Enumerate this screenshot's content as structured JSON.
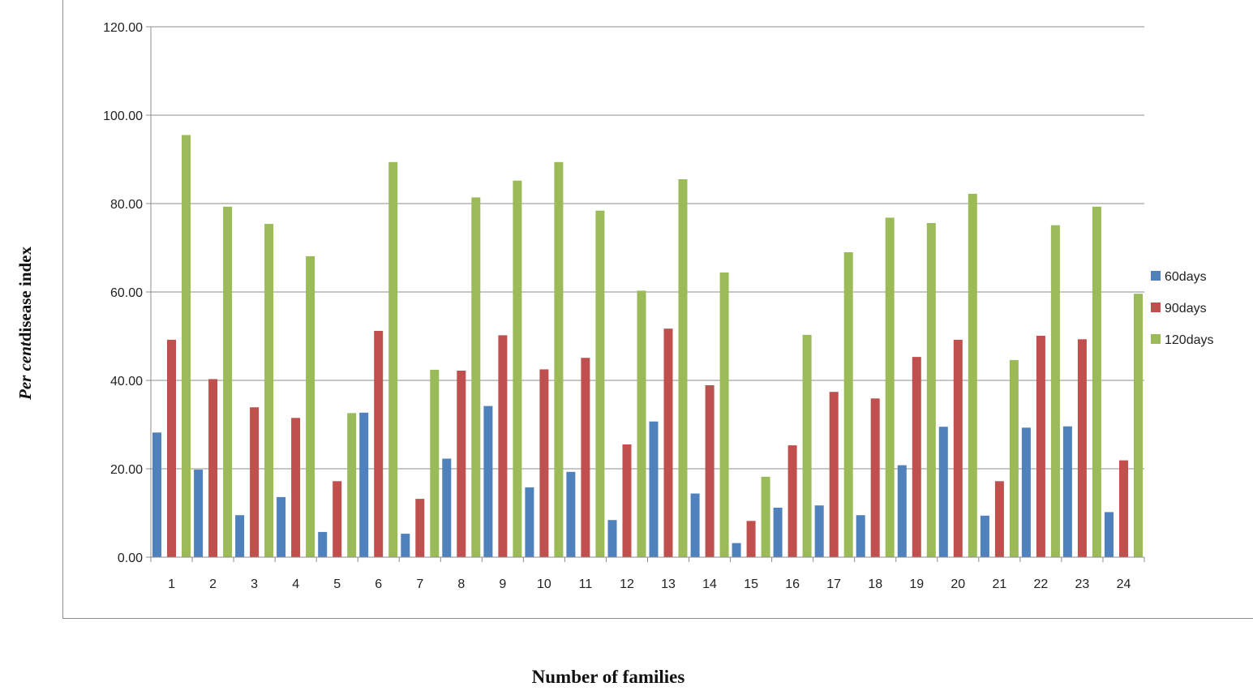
{
  "chart_data": {
    "type": "bar",
    "title": "",
    "xlabel": "Number of families",
    "ylabel_italic": "Per cent",
    "ylabel_rest": "disease index",
    "ylim": [
      0,
      120
    ],
    "yticks": [
      "0.00",
      "20.00",
      "40.00",
      "60.00",
      "80.00",
      "100.00",
      "120.00"
    ],
    "categories": [
      "1",
      "2",
      "3",
      "4",
      "5",
      "6",
      "7",
      "8",
      "9",
      "10",
      "11",
      "12",
      "13",
      "14",
      "15",
      "16",
      "17",
      "18",
      "19",
      "20",
      "21",
      "22",
      "23",
      "24"
    ],
    "legend_position": "right",
    "grid": true,
    "series": [
      {
        "name": "60days",
        "color": "#4f81bd",
        "values": [
          28.2,
          19.8,
          9.5,
          13.6,
          5.7,
          32.7,
          5.3,
          22.3,
          34.2,
          15.8,
          19.3,
          8.4,
          30.7,
          14.4,
          3.2,
          11.2,
          11.7,
          9.5,
          20.8,
          29.5,
          9.4,
          29.3,
          29.6,
          10.2
        ]
      },
      {
        "name": "90days",
        "color": "#c0504d",
        "values": [
          49.2,
          40.3,
          33.9,
          31.5,
          17.2,
          51.2,
          13.2,
          42.2,
          50.2,
          42.5,
          45.1,
          25.5,
          51.7,
          38.9,
          8.2,
          25.3,
          37.4,
          35.9,
          45.3,
          49.2,
          17.2,
          50.1,
          49.3,
          21.9
        ]
      },
      {
        "name": "120days",
        "color": "#9bbb59",
        "values": [
          95.5,
          79.3,
          75.4,
          68.1,
          32.6,
          89.4,
          42.4,
          81.4,
          85.2,
          89.4,
          78.4,
          60.3,
          85.5,
          64.4,
          18.2,
          50.3,
          69.0,
          76.8,
          75.6,
          82.2,
          44.6,
          75.1,
          79.3,
          59.6
        ]
      }
    ]
  }
}
